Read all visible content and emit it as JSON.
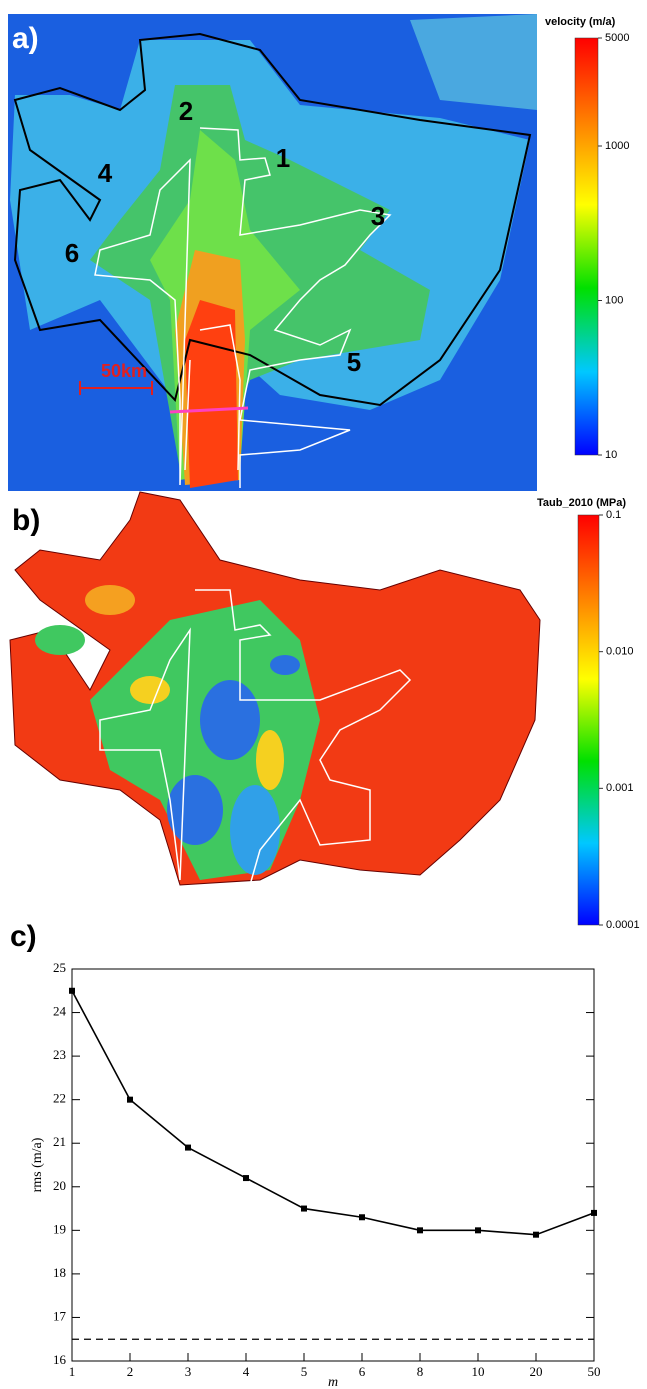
{
  "maps": [
    {
      "panel_label": "a)",
      "annotations": [
        "1",
        "2",
        "3",
        "4",
        "5",
        "6"
      ],
      "scale_bar": "50km"
    },
    {
      "panel_label": "b)"
    }
  ],
  "chart_data": [
    {
      "type": "colorbar",
      "title": "velocity (m/a)",
      "log_scale": true,
      "ylim": [
        10,
        5000
      ],
      "yticks": [
        10,
        100,
        1000,
        5000
      ],
      "colors": [
        "#0000ff",
        "#00c8ff",
        "#00e000",
        "#ffff00",
        "#ff8000",
        "#ff0000"
      ]
    },
    {
      "type": "colorbar",
      "title": "Taub_2010 (MPa)",
      "log_scale": true,
      "ylim": [
        0.0001,
        0.1
      ],
      "yticks": [
        0.0001,
        0.001,
        {
          "value": 0.01,
          "label": "0.010"
        },
        0.1
      ],
      "colors": [
        "#0000ff",
        "#00c8ff",
        "#00e000",
        "#ffff00",
        "#ff8000",
        "#ff0000"
      ]
    },
    {
      "type": "line",
      "panel_label": "c)",
      "xlabel": "m",
      "ylabel": "rms (m/a)",
      "categories": [
        "1",
        "2",
        "3",
        "4",
        "5",
        "6",
        "8",
        "10",
        "20",
        "50"
      ],
      "series": [
        {
          "color": "#000000",
          "values": [
            24.5,
            22.0,
            20.9,
            20.2,
            19.5,
            19.3,
            19.0,
            19.0,
            18.9,
            19.4
          ]
        }
      ],
      "reference_line": 16.5,
      "ylim": [
        16,
        25
      ],
      "yticks": [
        16,
        17,
        18,
        19,
        20,
        21,
        22,
        23,
        24,
        25
      ]
    }
  ]
}
